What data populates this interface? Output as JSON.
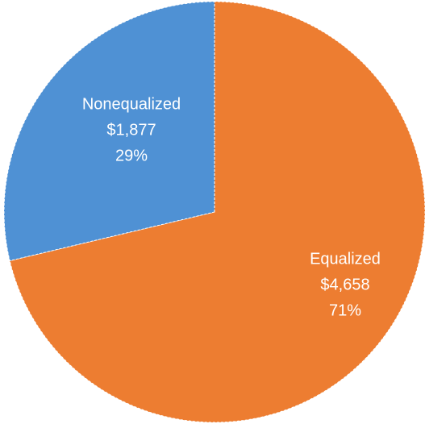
{
  "chart_data": {
    "type": "pie",
    "categories": [
      "Equalized",
      "Nonequalized"
    ],
    "values": [
      4658,
      1877
    ],
    "value_labels": [
      "$4,658",
      "$1,877"
    ],
    "percent_values": [
      71,
      29
    ],
    "percent_labels": [
      "71%",
      "29%"
    ],
    "colors": [
      "#ED7D31",
      "#4F91D4"
    ]
  }
}
